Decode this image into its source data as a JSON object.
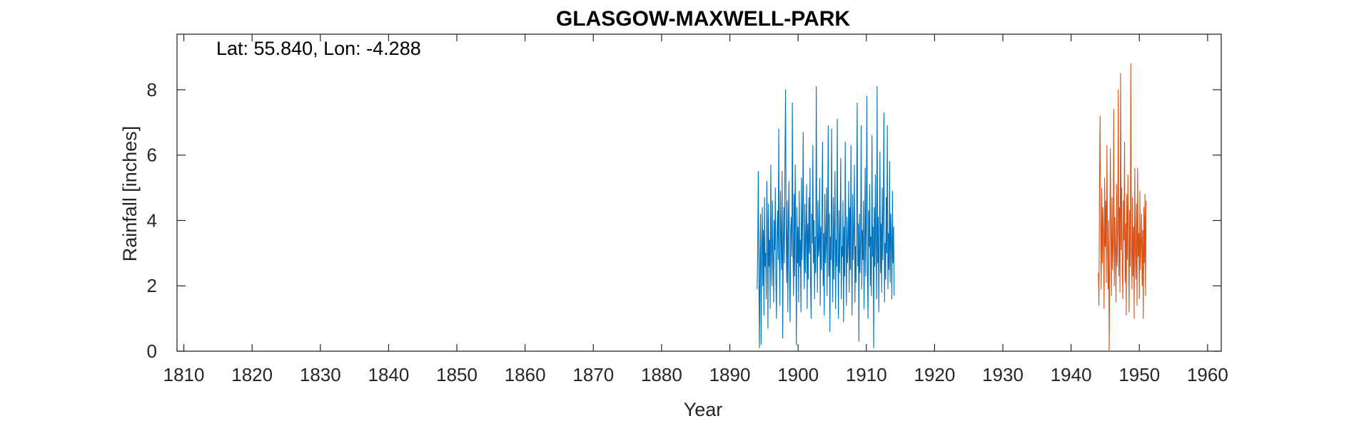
{
  "chart_data": {
    "type": "line",
    "title": "GLASGOW-MAXWELL-PARK",
    "annotation": "Lat: 55.840, Lon: -4.288",
    "xlabel": "Year",
    "ylabel": "Rainfall [inches]",
    "xlim": [
      1809,
      1962
    ],
    "ylim": [
      0,
      9.7
    ],
    "xticks": [
      1810,
      1820,
      1830,
      1840,
      1850,
      1860,
      1870,
      1880,
      1890,
      1900,
      1910,
      1920,
      1930,
      1940,
      1950,
      1960
    ],
    "yticks": [
      0,
      2,
      4,
      6,
      8
    ],
    "grid": false,
    "series": [
      {
        "color": "#0072BD",
        "x_start": 1894.0,
        "x_step": 0.0833,
        "values": [
          1.9,
          3.0,
          5.5,
          2.4,
          0.1,
          2.8,
          4.2,
          0.2,
          3.1,
          4.4,
          2.0,
          3.7,
          1.1,
          4.7,
          2.6,
          3.0,
          1.6,
          5.2,
          3.9,
          0.7,
          4.5,
          2.6,
          3.4,
          1.3,
          5.7,
          3.2,
          2.0,
          4.6,
          2.9,
          1.5,
          4.0,
          3.1,
          5.0,
          2.2,
          1.0,
          3.6,
          4.3,
          2.8,
          6.8,
          3.0,
          1.4,
          4.9,
          3.6,
          2.5,
          5.5,
          0.4,
          3.3,
          4.4,
          2.7,
          6.0,
          8.0,
          3.8,
          2.1,
          4.6,
          1.2,
          3.9,
          5.2,
          2.4,
          0.9,
          3.7,
          4.1,
          2.9,
          7.6,
          3.2,
          1.7,
          4.8,
          2.3,
          5.7,
          3.5,
          0.2,
          4.4,
          2.7,
          3.8,
          1.5,
          4.9,
          2.6,
          3.4,
          1.2,
          5.3,
          2.8,
          4.0,
          6.7,
          3.1,
          1.9,
          4.5,
          2.4,
          3.6,
          5.1,
          1.3,
          3.9,
          2.2,
          4.7,
          3.0,
          5.6,
          2.1,
          1.0,
          4.2,
          3.3,
          6.3,
          2.7,
          4.0,
          1.6,
          3.5,
          2.4,
          8.1,
          3.7,
          1.8,
          4.6,
          2.9,
          3.2,
          5.3,
          1.4,
          3.8,
          2.5,
          4.4,
          6.4,
          2.0,
          3.6,
          1.1,
          4.8,
          2.7,
          3.3,
          5.0,
          1.7,
          3.9,
          6.9,
          2.3,
          4.2,
          0.6,
          3.5,
          2.8,
          6.8,
          3.0,
          1.5,
          4.7,
          2.2,
          3.8,
          5.5,
          1.3,
          3.4,
          2.6,
          7.1,
          3.1,
          1.0,
          4.3,
          2.4,
          3.7,
          5.9,
          1.6,
          3.2,
          2.9,
          4.6,
          0.9,
          3.8,
          2.3,
          6.4,
          3.5,
          1.4,
          4.1,
          2.7,
          3.3,
          5.2,
          1.8,
          4.4,
          2.5,
          6.3,
          3.0,
          1.1,
          4.8,
          2.8,
          3.6,
          5.7,
          1.5,
          3.2,
          2.1,
          4.5,
          7.6,
          2.6,
          3.9,
          0.3,
          4.2,
          2.4,
          3.4,
          6.9,
          1.9,
          3.7,
          2.8,
          4.6,
          1.3,
          3.1,
          5.6,
          2.3,
          4.0,
          7.8,
          2.5,
          1.0,
          4.3,
          3.2,
          5.1,
          2.0,
          3.5,
          1.7,
          6.6,
          2.9,
          3.8,
          0.1,
          4.4,
          2.6,
          5.4,
          3.1,
          1.6,
          8.1,
          2.7,
          4.1,
          1.2,
          3.6,
          6.1,
          2.4,
          3.9,
          1.8,
          5.0,
          2.8,
          4.5,
          7.3,
          1.5,
          3.3,
          2.2,
          4.7,
          3.0,
          6.9,
          1.9,
          3.6,
          2.5,
          5.8,
          2.1,
          4.2,
          3.4,
          1.6,
          4.9,
          2.7,
          3.8,
          1.7
        ]
      },
      {
        "color": "#D95319",
        "x_start": 1944.0,
        "x_step": 0.0833,
        "values": [
          2.4,
          1.4,
          5.3,
          7.2,
          3.9,
          1.9,
          5.0,
          2.7,
          4.4,
          3.6,
          1.3,
          5.3,
          3.2,
          4.6,
          2.1,
          6.3,
          3.5,
          1.9,
          4.0,
          0.0,
          2.8,
          6.2,
          3.8,
          1.7,
          4.7,
          2.5,
          3.3,
          7.4,
          2.0,
          4.1,
          3.0,
          1.5,
          5.1,
          2.6,
          3.7,
          8.0,
          2.3,
          4.4,
          1.8,
          8.5,
          3.1,
          5.0,
          2.4,
          1.6,
          4.6,
          3.4,
          6.4,
          2.1,
          3.9,
          1.1,
          4.8,
          2.8,
          5.4,
          3.5,
          1.2,
          4.3,
          2.6,
          8.8,
          3.2,
          1.9,
          4.7,
          2.3,
          3.8,
          1.0,
          5.6,
          3.0,
          2.2,
          4.5,
          1.4,
          5.6,
          2.9,
          3.6,
          1.6,
          4.9,
          2.5,
          3.3,
          4.2,
          2.0,
          3.7,
          1.0,
          4.4,
          2.7,
          4.8,
          1.7,
          4.6
        ]
      }
    ]
  }
}
